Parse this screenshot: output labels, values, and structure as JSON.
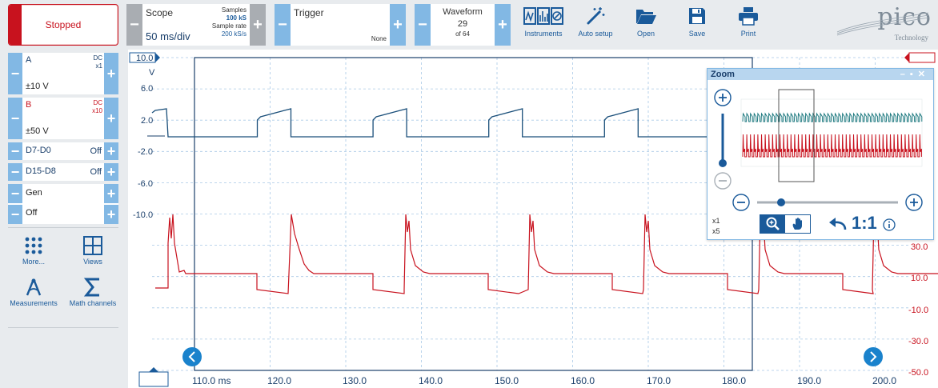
{
  "toolbar": {
    "run_state": "Stopped",
    "scope": {
      "label": "Scope",
      "timebase": "50 ms/div",
      "samples_label": "Samples",
      "samples": "100 kS",
      "rate_label": "Sample rate",
      "rate": "200 kS/s"
    },
    "trigger": {
      "label": "Trigger",
      "value": "None"
    },
    "waveform": {
      "label": "Waveform",
      "current": "29",
      "total": "of 64"
    },
    "tools": [
      {
        "label": "Instruments",
        "icon": "instruments-icon"
      },
      {
        "label": "Auto setup",
        "icon": "auto-setup-icon"
      },
      {
        "label": "Open",
        "icon": "folder-open-icon"
      },
      {
        "label": "Save",
        "icon": "save-icon"
      },
      {
        "label": "Print",
        "icon": "print-icon"
      }
    ],
    "logo": {
      "word": "pico",
      "sub": "Technology"
    }
  },
  "channels": {
    "a": {
      "name": "A",
      "coupling": "DC",
      "probe": "x1",
      "range": "±10 V"
    },
    "b": {
      "name": "B",
      "coupling": "DC",
      "probe": "x10",
      "range": "±50 V"
    },
    "d7_d0": {
      "name": "D7-D0",
      "state": "Off"
    },
    "d15_d8": {
      "name": "D15-D8",
      "state": "Off"
    },
    "gen": {
      "name": "Gen",
      "state": "Off"
    }
  },
  "left_tools": [
    {
      "label": "More...",
      "icon": "more-dots-icon"
    },
    {
      "label": "Views",
      "icon": "views-grid-icon"
    },
    {
      "label": "Measurements",
      "icon": "measurements-icon"
    },
    {
      "label": "Math channels",
      "icon": "sigma-icon"
    }
  ],
  "axes": {
    "a_unit": "V",
    "a_top": "10.0",
    "a_ticks": [
      "6.0",
      "2.0",
      "-2.0",
      "-6.0",
      "-10.0"
    ],
    "b_ticks": [
      "30.0",
      "10.0",
      "-10.0",
      "-30.0",
      "-50.0"
    ],
    "x_ticks": [
      "110.0 ms",
      "120.0",
      "130.0",
      "140.0",
      "150.0",
      "160.0",
      "170.0",
      "180.0",
      "190.0",
      "200.0"
    ]
  },
  "zoom": {
    "title": "Zoom",
    "level_1": "x1",
    "level_2": "x5",
    "ratio": "1:1"
  },
  "colors": {
    "channel_a": "#1a4f7a",
    "channel_b": "#c8121e",
    "accent": "#82b8e4",
    "accent_dark": "#1a5a9a"
  }
}
